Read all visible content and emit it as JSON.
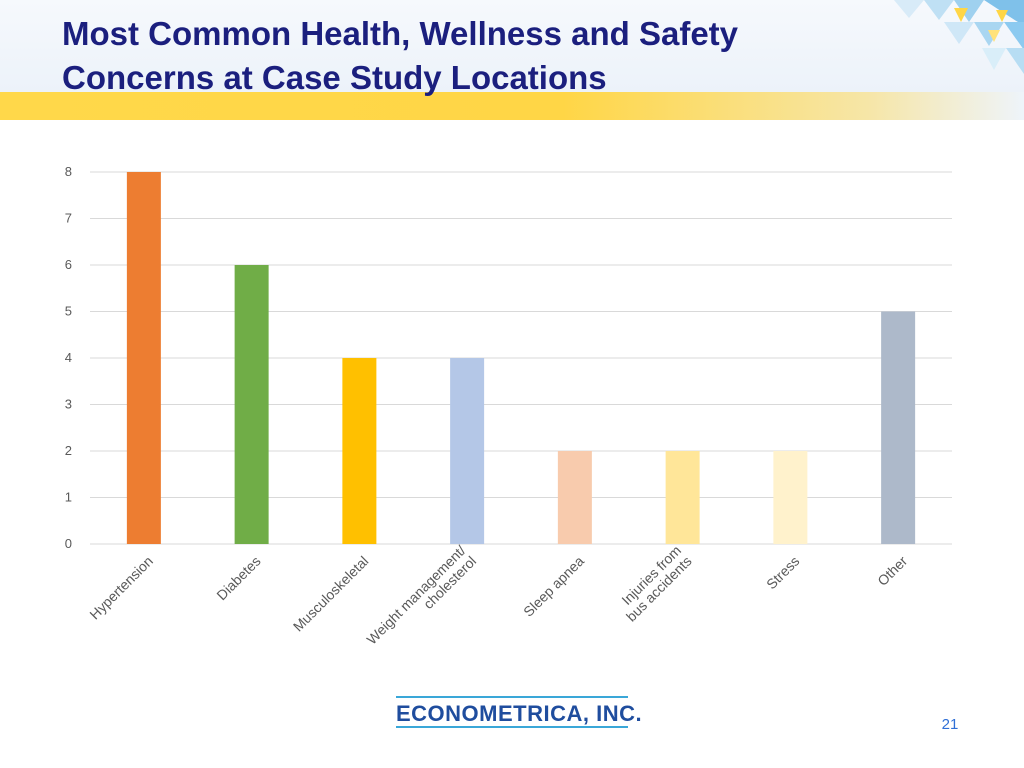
{
  "slide": {
    "title_line1": "Most Common Health, Wellness and Safety",
    "title_line2": "Concerns at Case Study Locations",
    "logo_text": "ECONOMETRICA, INC.",
    "page_number": "21"
  },
  "colors": {
    "title": "#1b1f7e",
    "stripe": "#ffd646",
    "grid": "#d9d9d9",
    "axis_text": "#595959"
  },
  "chart_data": {
    "type": "bar",
    "title": "",
    "xlabel": "",
    "ylabel": "",
    "ylim": [
      0,
      8
    ],
    "yticks": [
      0,
      1,
      2,
      3,
      4,
      5,
      6,
      7,
      8
    ],
    "grid": true,
    "legend": "none",
    "categories": [
      [
        "Hypertension"
      ],
      [
        "Diabetes"
      ],
      [
        "Musculoskeletal"
      ],
      [
        "Weight management/",
        "cholesterol"
      ],
      [
        "Sleep apnea"
      ],
      [
        "Injuries from",
        "bus accidents"
      ],
      [
        "Stress"
      ],
      [
        "Other"
      ]
    ],
    "values": [
      8,
      6,
      4,
      4,
      2,
      2,
      2,
      5
    ],
    "bar_colors": [
      "#ed7d31",
      "#70ad47",
      "#ffc000",
      "#b4c7e7",
      "#f8cbad",
      "#ffe699",
      "#fff2cc",
      "#adb9ca"
    ]
  }
}
